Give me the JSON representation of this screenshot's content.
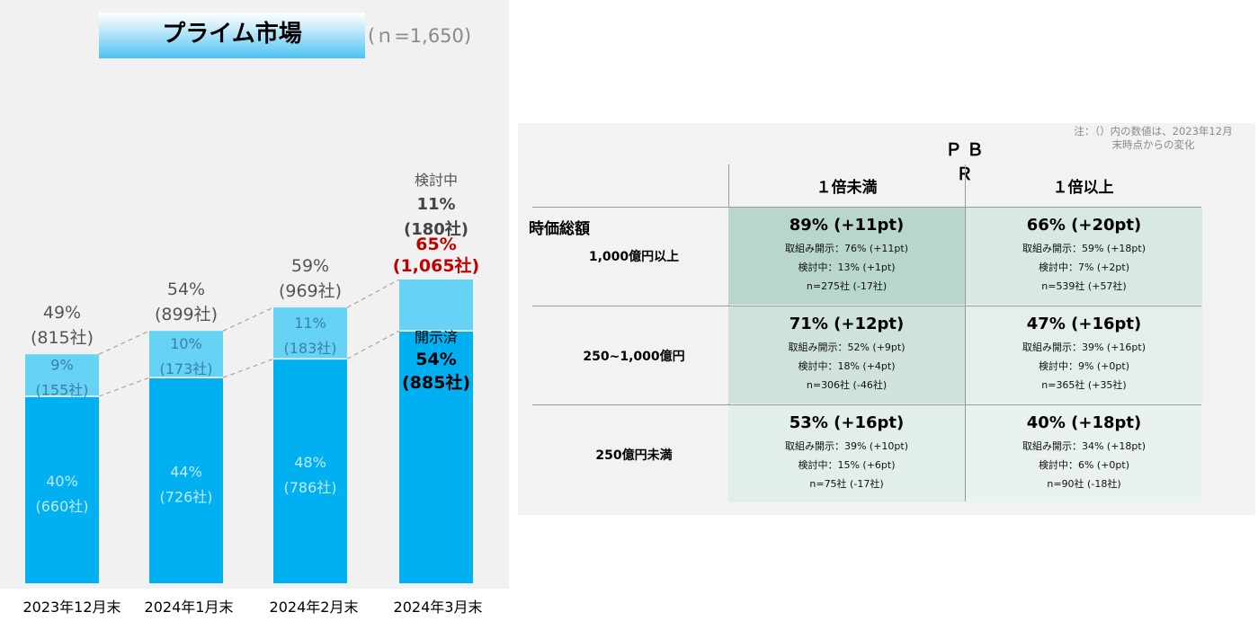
{
  "left_panel": {
    "title": "プライム市場",
    "sample_size": "(ｎ=1,650)"
  },
  "chart_data": [
    {
      "type": "bar",
      "stacked": true,
      "categories": [
        "2023年12月末",
        "2024年1月末",
        "2024年2月末",
        "2024年3月末"
      ],
      "series": [
        {
          "name": "開示済",
          "values": [
            40,
            44,
            48,
            54
          ],
          "companies": [
            660,
            726,
            786,
            885
          ],
          "color": "#00b0f0"
        },
        {
          "name": "検討中",
          "values": [
            9,
            10,
            11,
            11
          ],
          "companies": [
            155,
            173,
            183,
            180
          ],
          "color": "#66d3f5"
        }
      ],
      "totals": [
        49,
        54,
        59,
        65
      ],
      "total_companies": [
        815,
        899,
        969,
        1065
      ],
      "labels": {
        "disclosed_pct": [
          "40%",
          "44%",
          "48%",
          "54%"
        ],
        "disclosed_cnt": [
          "(660社)",
          "(726社)",
          "(786社)",
          "(885社)"
        ],
        "review_pct": [
          "9%",
          "10%",
          "11%",
          "11%"
        ],
        "review_cnt": [
          "(155社)",
          "(173社)",
          "(183社)",
          "(180社)"
        ],
        "total_pct": [
          "49%",
          "54%",
          "59%",
          "65%"
        ],
        "total_cnt": [
          "(815社)",
          "(899社)",
          "(969社)",
          "(1,065社)"
        ],
        "last_disclosed_name": "開示済",
        "last_review_name": "検討中"
      },
      "highlight_color": "#c00000",
      "ylim": [
        0,
        75
      ]
    }
  ],
  "table": {
    "note_line1": "注：（）内の数値は、2023年12月",
    "note_line2": "末時点からの変化",
    "header": "ＰＢＲ",
    "columns": [
      "１倍未満",
      "１倍以上"
    ],
    "row_group": "時価総額",
    "rows": [
      {
        "label": "1,000億円以上",
        "cells": [
          {
            "main": "89% (+11pt)",
            "l1": "取組み開示：76% (+11pt)",
            "l2": "検討中：13% (+1pt)",
            "l3": "n=275社 (-17社)",
            "bg": "#b9d6cc"
          },
          {
            "main": "66% (+20pt)",
            "l1": "取組み開示：59% (+18pt)",
            "l2": "検討中：7% (+2pt)",
            "l3": "n=539社 (+57社)",
            "bg": "#d8e8e2"
          }
        ]
      },
      {
        "label": "250~1,000億円",
        "cells": [
          {
            "main": "71% (+12pt)",
            "l1": "取組み開示：52% (+9pt)",
            "l2": "検討中：18% (+4pt)",
            "l3": "n=306社 (-46社)",
            "bg": "#cfe3db"
          },
          {
            "main": "47% (+16pt)",
            "l1": "取組み開示：39% (+16pt)",
            "l2": "検討中：9% (+0pt)",
            "l3": "n=365社 (+35社)",
            "bg": "#e4efeb"
          }
        ]
      },
      {
        "label": "250億円未満",
        "cells": [
          {
            "main": "53% (+16pt)",
            "l1": "取組み開示：39% (+10pt)",
            "l2": "検討中：15% (+6pt)",
            "l3": "n=75社 (-17社)",
            "bg": "#e1eee9"
          },
          {
            "main": "40% (+18pt)",
            "l1": "取組み開示：34% (+18pt)",
            "l2": "検討中：6% (+0pt)",
            "l3": "n=90社 (-18社)",
            "bg": "#e9f2ee"
          }
        ]
      }
    ]
  }
}
